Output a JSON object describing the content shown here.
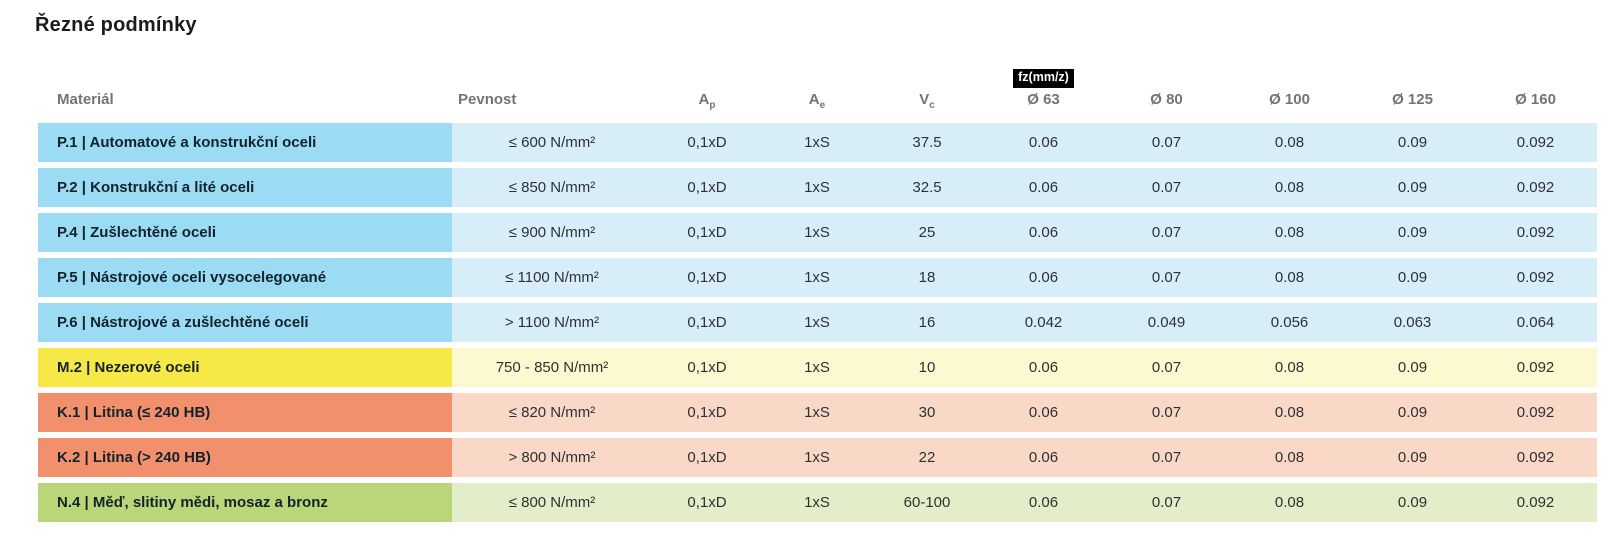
{
  "page": {
    "title": "Řezné podmínky"
  },
  "table": {
    "unit_badge": "fz(mm/z)",
    "palette": {
      "blue": {
        "dark": "#9BDBF3",
        "light": "#D7EEF9"
      },
      "yellow": {
        "dark": "#F6E847",
        "light": "#FCF8CF"
      },
      "orange": {
        "dark": "#F2906E",
        "light": "#FAD8C8"
      },
      "green": {
        "dark": "#B9D678",
        "light": "#E3EDC9"
      }
    },
    "columns": [
      {
        "key": "material",
        "label": "Materiál"
      },
      {
        "key": "pevnost",
        "label": "Pevnost"
      },
      {
        "key": "ap",
        "label": "A",
        "sub": "p"
      },
      {
        "key": "ae",
        "label": "A",
        "sub": "e"
      },
      {
        "key": "vc",
        "label": "V",
        "sub": "c"
      },
      {
        "key": "d63",
        "label": "Ø 63",
        "badge": true
      },
      {
        "key": "d80",
        "label": "Ø 80"
      },
      {
        "key": "d100",
        "label": "Ø 100"
      },
      {
        "key": "d125",
        "label": "Ø 125"
      },
      {
        "key": "d160",
        "label": "Ø 160"
      }
    ],
    "rows": [
      {
        "color": "blue",
        "material": "P.1 | Automatové a konstrukční oceli",
        "pevnost": "≤ 600 N/mm²",
        "ap": "0,1xD",
        "ae": "1xS",
        "vc": "37.5",
        "fz": [
          "0.06",
          "0.07",
          "0.08",
          "0.09",
          "0.092"
        ]
      },
      {
        "color": "blue",
        "material": "P.2 | Konstrukční a lité oceli",
        "pevnost": "≤ 850 N/mm²",
        "ap": "0,1xD",
        "ae": "1xS",
        "vc": "32.5",
        "fz": [
          "0.06",
          "0.07",
          "0.08",
          "0.09",
          "0.092"
        ]
      },
      {
        "color": "blue",
        "material": "P.4 | Zušlechtěné oceli",
        "pevnost": "≤ 900 N/mm²",
        "ap": "0,1xD",
        "ae": "1xS",
        "vc": "25",
        "fz": [
          "0.06",
          "0.07",
          "0.08",
          "0.09",
          "0.092"
        ]
      },
      {
        "color": "blue",
        "material": "P.5 | Nástrojové oceli vysocelegované",
        "pevnost": "≤ 1100 N/mm²",
        "ap": "0,1xD",
        "ae": "1xS",
        "vc": "18",
        "fz": [
          "0.06",
          "0.07",
          "0.08",
          "0.09",
          "0.092"
        ]
      },
      {
        "color": "blue",
        "material": "P.6 | Nástrojové a zušlechtěné oceli",
        "pevnost": "> 1100 N/mm²",
        "ap": "0,1xD",
        "ae": "1xS",
        "vc": "16",
        "fz": [
          "0.042",
          "0.049",
          "0.056",
          "0.063",
          "0.064"
        ]
      },
      {
        "color": "yellow",
        "material": "M.2 | Nezerové oceli",
        "pevnost": "750 - 850 N/mm²",
        "ap": "0,1xD",
        "ae": "1xS",
        "vc": "10",
        "fz": [
          "0.06",
          "0.07",
          "0.08",
          "0.09",
          "0.092"
        ]
      },
      {
        "color": "orange",
        "material": "K.1 | Litina (≤ 240 HB)",
        "pevnost": "≤ 820 N/mm²",
        "ap": "0,1xD",
        "ae": "1xS",
        "vc": "30",
        "fz": [
          "0.06",
          "0.07",
          "0.08",
          "0.09",
          "0.092"
        ]
      },
      {
        "color": "orange",
        "material": "K.2 | Litina (> 240 HB)",
        "pevnost": "> 800 N/mm²",
        "ap": "0,1xD",
        "ae": "1xS",
        "vc": "22",
        "fz": [
          "0.06",
          "0.07",
          "0.08",
          "0.09",
          "0.092"
        ]
      },
      {
        "color": "green",
        "material": "N.4 | Měď, slitiny mědi, mosaz a bronz",
        "pevnost": "≤ 800 N/mm²",
        "ap": "0,1xD",
        "ae": "1xS",
        "vc": "60-100",
        "fz": [
          "0.06",
          "0.07",
          "0.08",
          "0.09",
          "0.092"
        ]
      }
    ]
  }
}
